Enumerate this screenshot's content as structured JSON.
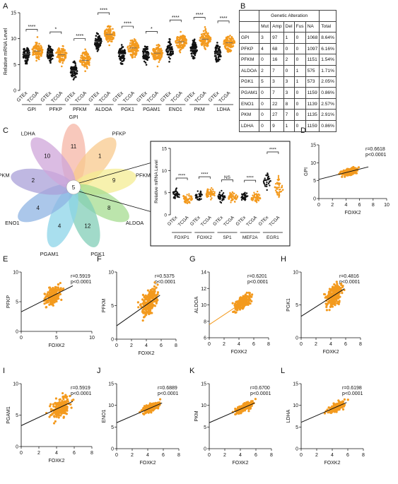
{
  "panel_labels": [
    "A",
    "B",
    "C",
    "D",
    "E",
    "F",
    "G",
    "H",
    "I",
    "J",
    "K",
    "L"
  ],
  "colors": {
    "normal": "#111111",
    "tumor": "#F39A1E",
    "orange_line": "#F39A1E"
  },
  "panel_a": {
    "ylabel": "Relative mRNA Level",
    "yticks": [
      "0",
      "5",
      "10",
      "15"
    ],
    "genes": [
      "GPI",
      "PFKP",
      "PFKM",
      "ALDOA",
      "PGK1",
      "PGAM1",
      "ENO1",
      "PKM",
      "LDHA"
    ],
    "group_labels": [
      "GTEx",
      "TCGA"
    ],
    "significance": [
      "****",
      "*",
      "****",
      "****",
      "****",
      "*",
      "****",
      "****",
      "****"
    ]
  },
  "panel_b": {
    "header_group": "Genetic Alteration",
    "columns": [
      "Mut",
      "Amp",
      "Del",
      "Fus",
      "NA",
      "Total"
    ],
    "rows": [
      {
        "gene": "GPI",
        "mut": "3",
        "amp": "97",
        "del": "1",
        "fus": "0",
        "na": "1068",
        "total": "8.64%"
      },
      {
        "gene": "PFKP",
        "mut": "4",
        "amp": "68",
        "del": "0",
        "fus": "0",
        "na": "1097",
        "total": "6.16%"
      },
      {
        "gene": "PFKM",
        "mut": "0",
        "amp": "16",
        "del": "2",
        "fus": "0",
        "na": "1151",
        "total": "1.54%"
      },
      {
        "gene": "ALDOA",
        "mut": "2",
        "amp": "7",
        "del": "0",
        "fus": "1",
        "na": "575",
        "total": "1.71%"
      },
      {
        "gene": "PGK1",
        "mut": "5",
        "amp": "3",
        "del": "3",
        "fus": "1",
        "na": "573",
        "total": "2.05%"
      },
      {
        "gene": "PGAM1",
        "mut": "0",
        "amp": "7",
        "del": "3",
        "fus": "0",
        "na": "1159",
        "total": "0.86%"
      },
      {
        "gene": "ENO1",
        "mut": "0",
        "amp": "22",
        "del": "8",
        "fus": "0",
        "na": "1139",
        "total": "2.57%"
      },
      {
        "gene": "PKM",
        "mut": "0",
        "amp": "27",
        "del": "7",
        "fus": "0",
        "na": "1135",
        "total": "2.91%"
      },
      {
        "gene": "LDHA",
        "mut": "0",
        "amp": "9",
        "del": "1",
        "fus": "0",
        "na": "1159",
        "total": "0.86%"
      }
    ]
  },
  "panel_c": {
    "center": "5",
    "petals": [
      {
        "gene": "GPI",
        "count": "11",
        "color": "#F5B5A6"
      },
      {
        "gene": "PFKP",
        "count": "1",
        "color": "#F8C98E"
      },
      {
        "gene": "PFKM",
        "count": "9",
        "color": "#F4EC93"
      },
      {
        "gene": "ALDOA",
        "count": "8",
        "color": "#A6DC90"
      },
      {
        "gene": "PGK1",
        "count": "12",
        "color": "#82CDB7"
      },
      {
        "gene": "PGAM1",
        "count": "4",
        "color": "#8CD4E8"
      },
      {
        "gene": "ENO1",
        "count": "4",
        "color": "#8FB4E3"
      },
      {
        "gene": "PKM",
        "count": "2",
        "color": "#AAA0D8"
      },
      {
        "gene": "LDHA",
        "count": "10",
        "color": "#CFA6DA"
      }
    ],
    "inset": {
      "ylabel": "Relative mRNA Level",
      "yticks": [
        "0",
        "5",
        "10",
        "15"
      ],
      "genes": [
        "FOXP1",
        "FOXK2",
        "SP1",
        "MEF2A",
        "EGR1"
      ],
      "significance": [
        "****",
        "****",
        "NS",
        "****",
        "****"
      ]
    }
  },
  "scatter_panels": [
    {
      "label": "D",
      "gene": "GPI",
      "r": "r=0.6618",
      "p": "p<0.0001",
      "xlabel": "FOXK2",
      "yticks": [
        "0",
        "5",
        "10",
        "15"
      ],
      "xticks": [
        "0",
        "2",
        "4",
        "6",
        "8",
        "10"
      ],
      "line_color": "#111111"
    },
    {
      "label": "E",
      "gene": "PFKP",
      "r": "r=0.5919",
      "p": "p<0.0001",
      "xlabel": "FOXK2",
      "yticks": [
        "0",
        "5",
        "10"
      ],
      "xticks": [
        "0",
        "5",
        "10"
      ],
      "line_color": "#111111"
    },
    {
      "label": "F",
      "gene": "PFKM",
      "r": "r=0.5375",
      "p": "p<0.0001",
      "xlabel": "FOXK2",
      "yticks": [
        "0",
        "5",
        "10"
      ],
      "xticks": [
        "0",
        "2",
        "4",
        "6",
        "8"
      ],
      "line_color": "#111111"
    },
    {
      "label": "G",
      "gene": "ALDOA",
      "r": "r=0.6201",
      "p": "p<0.0001",
      "xlabel": "FOXK2",
      "yticks": [
        "6",
        "8",
        "10",
        "12",
        "14"
      ],
      "xticks": [
        "0",
        "2",
        "4",
        "6",
        "8"
      ],
      "line_color": "#F39A1E"
    },
    {
      "label": "H",
      "gene": "PGK1",
      "r": "r=0.4816",
      "p": "p<0.0001",
      "xlabel": "FOXK2",
      "yticks": [
        "0",
        "5",
        "10"
      ],
      "xticks": [
        "0",
        "2",
        "4",
        "6",
        "8"
      ],
      "line_color": "#111111"
    },
    {
      "label": "I",
      "gene": "PGAM1",
      "r": "r=0.5919",
      "p": "p<0.0001",
      "xlabel": "FOXK2",
      "yticks": [
        "0",
        "5",
        "10"
      ],
      "xticks": [
        "0",
        "2",
        "4",
        "6",
        "8"
      ],
      "line_color": "#111111"
    },
    {
      "label": "J",
      "gene": "ENO1",
      "r": "r=0.6889",
      "p": "p<0.0001",
      "xlabel": "FOXK2",
      "yticks": [
        "0",
        "5",
        "10",
        "15"
      ],
      "xticks": [
        "0",
        "2",
        "4",
        "6",
        "8"
      ],
      "line_color": "#111111"
    },
    {
      "label": "K",
      "gene": "PKM",
      "r": "r=0.6700",
      "p": "p<0.0001",
      "xlabel": "FOXK2",
      "yticks": [
        "0",
        "5",
        "10",
        "15"
      ],
      "xticks": [
        "0",
        "2",
        "4",
        "6",
        "8"
      ],
      "line_color": "#111111"
    },
    {
      "label": "L",
      "gene": "LDHA",
      "r": "r=0.6198",
      "p": "p<0.0001",
      "xlabel": "FOXK2",
      "yticks": [
        "0",
        "5",
        "10",
        "15"
      ],
      "xticks": [
        "0",
        "2",
        "4",
        "6",
        "8"
      ],
      "line_color": "#111111"
    }
  ]
}
